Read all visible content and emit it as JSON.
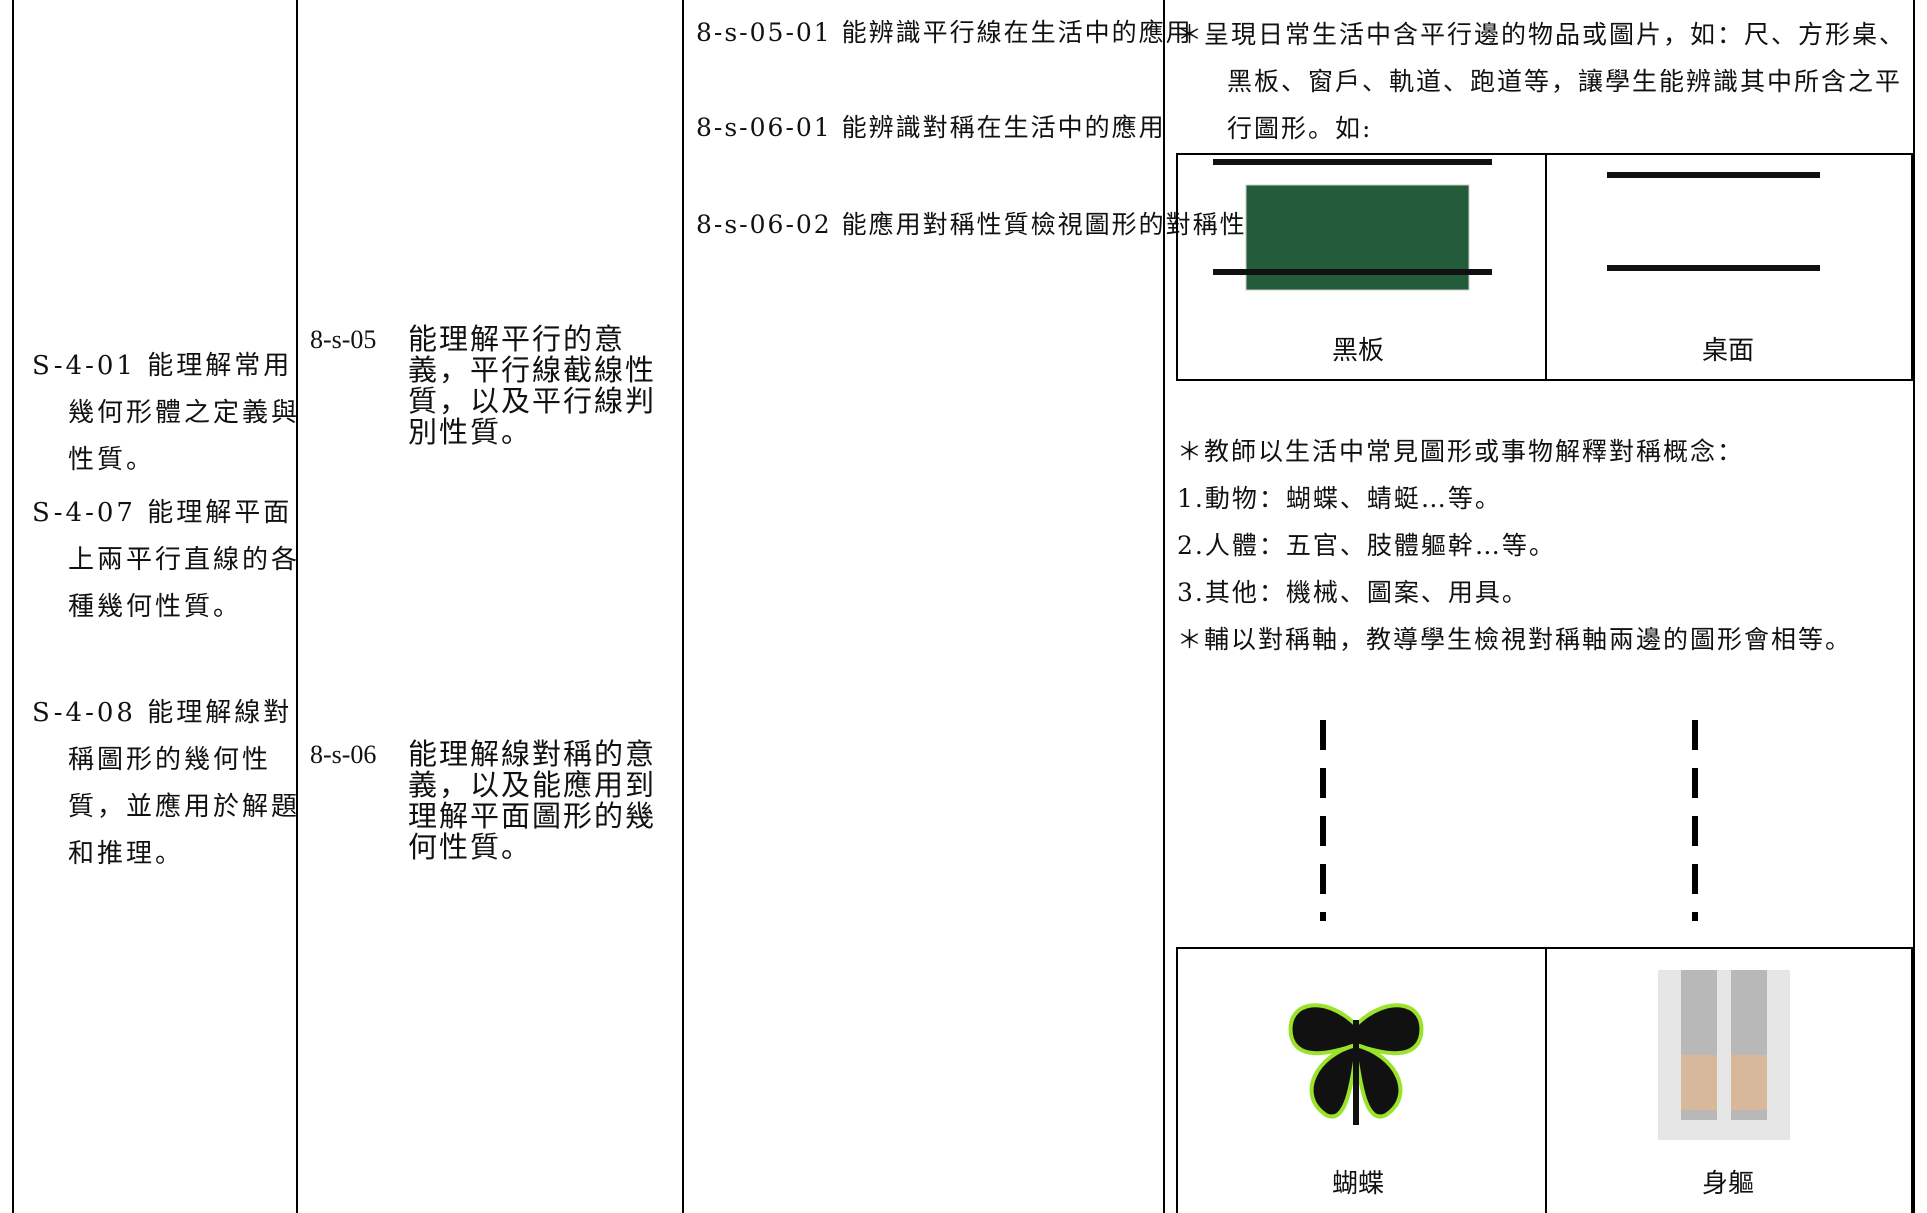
{
  "table": {
    "col1": [
      "S-4-01 能理解常用幾何形體之定義與性質。",
      "S-4-07 能理解平面上兩平行直線的各種幾何性質。",
      "S-4-08 能理解線對稱圖形的幾何性質，並應用於解題和推理。"
    ],
    "col2": [
      {
        "code": "8-s-05",
        "text": "能理解平行的意義，平行線截線性質，以及平行線判別性質。"
      },
      {
        "code": "8-s-06",
        "text": "能理解線對稱的意義，以及能應用到理解平面圖形的幾何性質。"
      }
    ],
    "col3": [
      "8-s-05-01 能辨識平行線在生活中的應用",
      "8-s-06-01 能辨識對稱在生活中的應用",
      "8-s-06-02 能應用對稱性質檢視圖形的對稱性"
    ],
    "col4": {
      "intro": "＊呈現日常生活中含平行邊的物品或圖片，如：尺、方形桌、黑板、窗戶、軌道、跑道等，讓學生能辨識其中所含之平行圖形。如:",
      "parallel_captions": [
        "黑板",
        "桌面"
      ],
      "symmetry": [
        "＊教師以生活中常見圖形或事物解釋對稱概念：",
        "1.動物：蝴蝶、蜻蜓…等。",
        "2.人體：五官、肢體軀幹…等。",
        "3.其他：機械、圖案、用具。",
        "＊輔以對稱軸，教導學生檢視對稱軸兩邊的圖形會相等。"
      ],
      "symmetry_captions": [
        "蝴蝶",
        "身軀"
      ]
    }
  }
}
